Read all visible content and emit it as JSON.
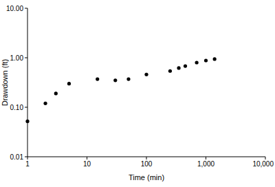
{
  "chart_data": {
    "type": "scatter",
    "x_label": "Time (min)",
    "y_label": "Drawdown (ft)",
    "x": [
      1,
      2,
      3,
      5,
      15,
      30,
      50,
      100,
      250,
      350,
      450,
      700,
      1000,
      1400
    ],
    "values": [
      0.052,
      0.12,
      0.19,
      0.3,
      0.37,
      0.35,
      0.37,
      0.46,
      0.54,
      0.62,
      0.68,
      0.8,
      0.88,
      0.94
    ],
    "color": "#000000",
    "marker": "circle",
    "log": true,
    "xlim": [
      1,
      10000
    ],
    "xticks": [
      1,
      10,
      100,
      {
        "value": 1000,
        "label": "1,000"
      },
      {
        "value": 10000,
        "label": "10,000"
      }
    ],
    "ylim": [
      0.01,
      10
    ],
    "yticks": [
      {
        "value": 0.01,
        "label": "0.01"
      },
      {
        "value": 0.1,
        "label": "0.10"
      },
      {
        "value": 1,
        "label": "1.00"
      },
      {
        "value": 10,
        "label": "10.00"
      }
    ],
    "grid": false
  }
}
